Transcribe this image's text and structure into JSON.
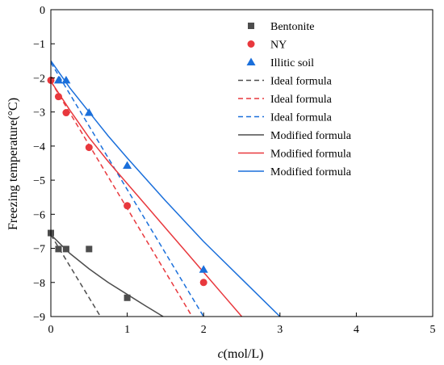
{
  "chart_data": {
    "type": "scatter",
    "xlabel_italic": "c",
    "xlabel_rest": "(mol/L)",
    "ylabel": "Freezing temperature(°C)",
    "xlim": [
      0,
      5
    ],
    "ylim": [
      -9,
      0
    ],
    "xticks": [
      0,
      1,
      2,
      3,
      4,
      5
    ],
    "yticks": [
      0,
      -1,
      -2,
      -3,
      -4,
      -5,
      -6,
      -7,
      -8,
      -9
    ],
    "grid": false,
    "legend_position": "top-right",
    "series": [
      {
        "name": "Bentonite",
        "kind": "scatter",
        "marker": "square",
        "color": "#4d4d4d",
        "points": [
          [
            0,
            -6.55
          ],
          [
            0.1,
            -7.02
          ],
          [
            0.2,
            -7.02
          ],
          [
            0.5,
            -7.02
          ],
          [
            1,
            -8.45
          ]
        ]
      },
      {
        "name": "NY",
        "kind": "scatter",
        "marker": "circle",
        "color": "#e8383d",
        "points": [
          [
            0,
            -2.07
          ],
          [
            0.1,
            -2.55
          ],
          [
            0.2,
            -3.02
          ],
          [
            0.5,
            -4.04
          ],
          [
            1,
            -5.75
          ],
          [
            2,
            -8.0
          ]
        ]
      },
      {
        "name": "Illitic soil",
        "kind": "scatter",
        "marker": "triangle",
        "color": "#1a6fdb",
        "points": [
          [
            0.1,
            -2.07
          ],
          [
            0.2,
            -2.07
          ],
          [
            0.5,
            -3.02
          ],
          [
            1,
            -4.57
          ],
          [
            2,
            -7.62
          ]
        ]
      },
      {
        "name": "Ideal formula",
        "kind": "line",
        "dash": true,
        "color": "#4d4d4d",
        "points": [
          [
            0,
            -6.6
          ],
          [
            0.65,
            -9
          ]
        ]
      },
      {
        "name": "Ideal formula",
        "kind": "line",
        "dash": true,
        "color": "#e8383d",
        "points": [
          [
            0,
            -2.1
          ],
          [
            1.85,
            -9
          ]
        ]
      },
      {
        "name": "Ideal formula",
        "kind": "line",
        "dash": true,
        "color": "#1a6fdb",
        "points": [
          [
            0,
            -1.55
          ],
          [
            2,
            -9
          ]
        ]
      },
      {
        "name": "Modified formula",
        "kind": "line",
        "dash": false,
        "color": "#4d4d4d",
        "points": [
          [
            0,
            -6.6
          ],
          [
            0.25,
            -7.15
          ],
          [
            0.5,
            -7.6
          ],
          [
            0.75,
            -8.0
          ],
          [
            1,
            -8.35
          ],
          [
            1.25,
            -8.7
          ],
          [
            1.47,
            -9
          ]
        ]
      },
      {
        "name": "Modified formula",
        "kind": "line",
        "dash": false,
        "color": "#e8383d",
        "points": [
          [
            0,
            -2.1
          ],
          [
            0.25,
            -2.95
          ],
          [
            0.5,
            -3.75
          ],
          [
            0.75,
            -4.45
          ],
          [
            1,
            -5.1
          ],
          [
            1.25,
            -5.75
          ],
          [
            1.5,
            -6.4
          ],
          [
            1.75,
            -7.05
          ],
          [
            2,
            -7.7
          ],
          [
            2.25,
            -8.35
          ],
          [
            2.5,
            -9
          ]
        ]
      },
      {
        "name": "Modified formula",
        "kind": "line",
        "dash": false,
        "color": "#1a6fdb",
        "points": [
          [
            0,
            -1.5
          ],
          [
            0.25,
            -2.3
          ],
          [
            0.5,
            -3.0
          ],
          [
            0.75,
            -3.7
          ],
          [
            1,
            -4.35
          ],
          [
            1.5,
            -5.6
          ],
          [
            2,
            -6.8
          ],
          [
            2.5,
            -7.9
          ],
          [
            3,
            -9
          ]
        ]
      }
    ]
  }
}
